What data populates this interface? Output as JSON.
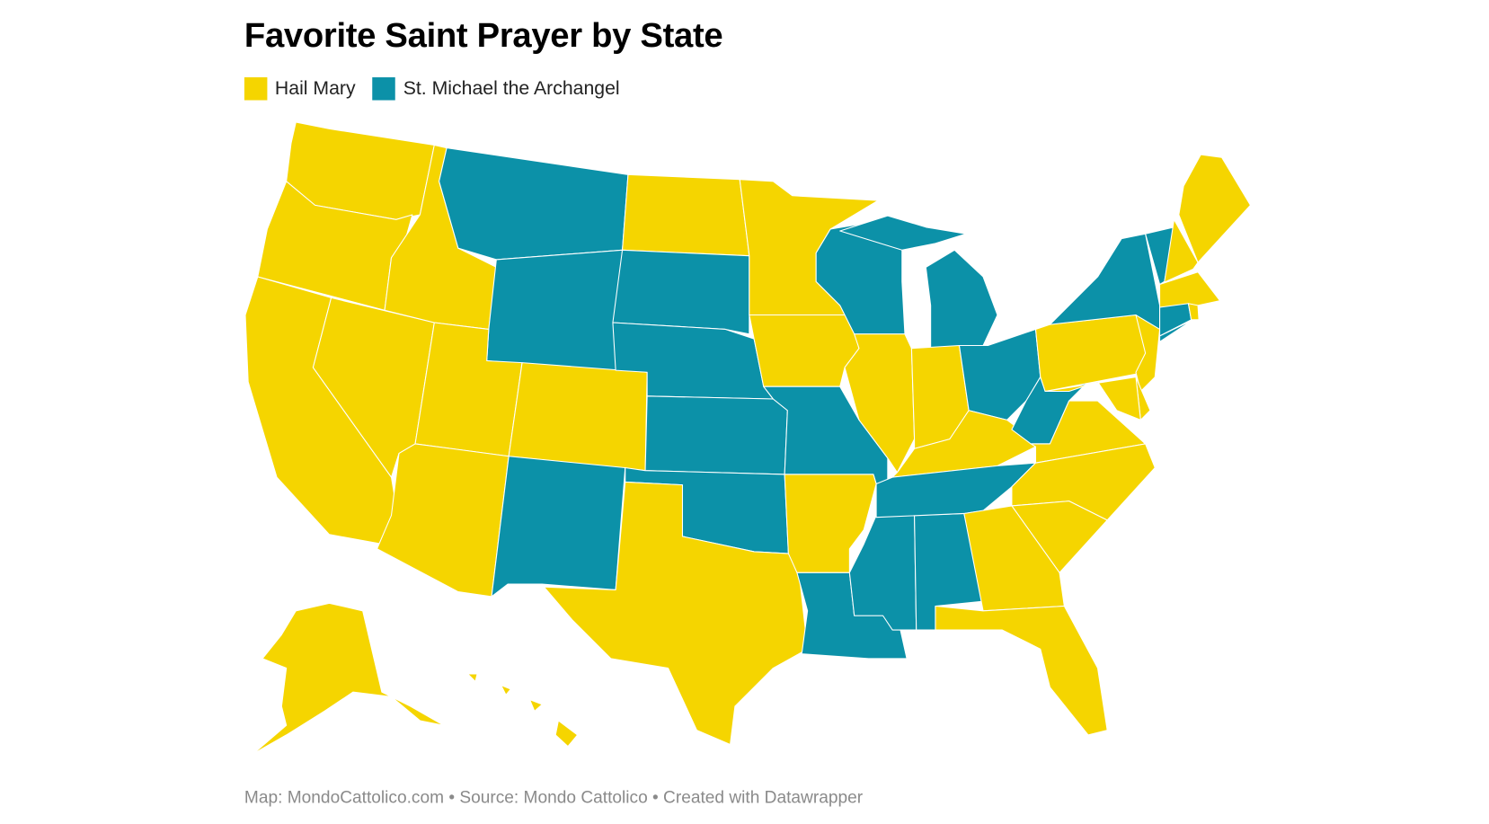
{
  "title": "Favorite Saint Prayer by State",
  "legend": [
    {
      "label": "Hail Mary",
      "color": "#F5D500"
    },
    {
      "label": "St. Michael the Archangel",
      "color": "#0C91A8"
    }
  ],
  "footer": "Map: MondoCattolico.com • Source: Mondo Cattolico • Created with Datawrapper",
  "states": [
    {
      "code": "WA",
      "category": "Hail Mary"
    },
    {
      "code": "OR",
      "category": "Hail Mary"
    },
    {
      "code": "CA",
      "category": "Hail Mary"
    },
    {
      "code": "NV",
      "category": "Hail Mary"
    },
    {
      "code": "ID",
      "category": "Hail Mary"
    },
    {
      "code": "MT",
      "category": "St. Michael the Archangel"
    },
    {
      "code": "WY",
      "category": "St. Michael the Archangel"
    },
    {
      "code": "UT",
      "category": "Hail Mary"
    },
    {
      "code": "CO",
      "category": "Hail Mary"
    },
    {
      "code": "AZ",
      "category": "Hail Mary"
    },
    {
      "code": "NM",
      "category": "St. Michael the Archangel"
    },
    {
      "code": "ND",
      "category": "Hail Mary"
    },
    {
      "code": "SD",
      "category": "St. Michael the Archangel"
    },
    {
      "code": "NE",
      "category": "St. Michael the Archangel"
    },
    {
      "code": "KS",
      "category": "St. Michael the Archangel"
    },
    {
      "code": "OK",
      "category": "St. Michael the Archangel"
    },
    {
      "code": "TX",
      "category": "Hail Mary"
    },
    {
      "code": "MN",
      "category": "Hail Mary"
    },
    {
      "code": "IA",
      "category": "Hail Mary"
    },
    {
      "code": "MO",
      "category": "St. Michael the Archangel"
    },
    {
      "code": "AR",
      "category": "Hail Mary"
    },
    {
      "code": "LA",
      "category": "St. Michael the Archangel"
    },
    {
      "code": "MS",
      "category": "St. Michael the Archangel"
    },
    {
      "code": "AL",
      "category": "St. Michael the Archangel"
    },
    {
      "code": "WI",
      "category": "St. Michael the Archangel"
    },
    {
      "code": "IL",
      "category": "Hail Mary"
    },
    {
      "code": "MI",
      "category": "St. Michael the Archangel"
    },
    {
      "code": "IN",
      "category": "Hail Mary"
    },
    {
      "code": "OH",
      "category": "St. Michael the Archangel"
    },
    {
      "code": "KY",
      "category": "Hail Mary"
    },
    {
      "code": "TN",
      "category": "St. Michael the Archangel"
    },
    {
      "code": "WV",
      "category": "St. Michael the Archangel"
    },
    {
      "code": "VA",
      "category": "Hail Mary"
    },
    {
      "code": "NC",
      "category": "Hail Mary"
    },
    {
      "code": "SC",
      "category": "Hail Mary"
    },
    {
      "code": "GA",
      "category": "Hail Mary"
    },
    {
      "code": "FL",
      "category": "Hail Mary"
    },
    {
      "code": "PA",
      "category": "Hail Mary"
    },
    {
      "code": "NY",
      "category": "St. Michael the Archangel"
    },
    {
      "code": "NJ",
      "category": "Hail Mary"
    },
    {
      "code": "DE",
      "category": "Hail Mary"
    },
    {
      "code": "MD",
      "category": "Hail Mary"
    },
    {
      "code": "VT",
      "category": "St. Michael the Archangel"
    },
    {
      "code": "NH",
      "category": "Hail Mary"
    },
    {
      "code": "ME",
      "category": "Hail Mary"
    },
    {
      "code": "MA",
      "category": "Hail Mary"
    },
    {
      "code": "CT",
      "category": "St. Michael the Archangel"
    },
    {
      "code": "RI",
      "category": "Hail Mary"
    },
    {
      "code": "AK",
      "category": "Hail Mary"
    },
    {
      "code": "HI",
      "category": "Hail Mary"
    }
  ]
}
